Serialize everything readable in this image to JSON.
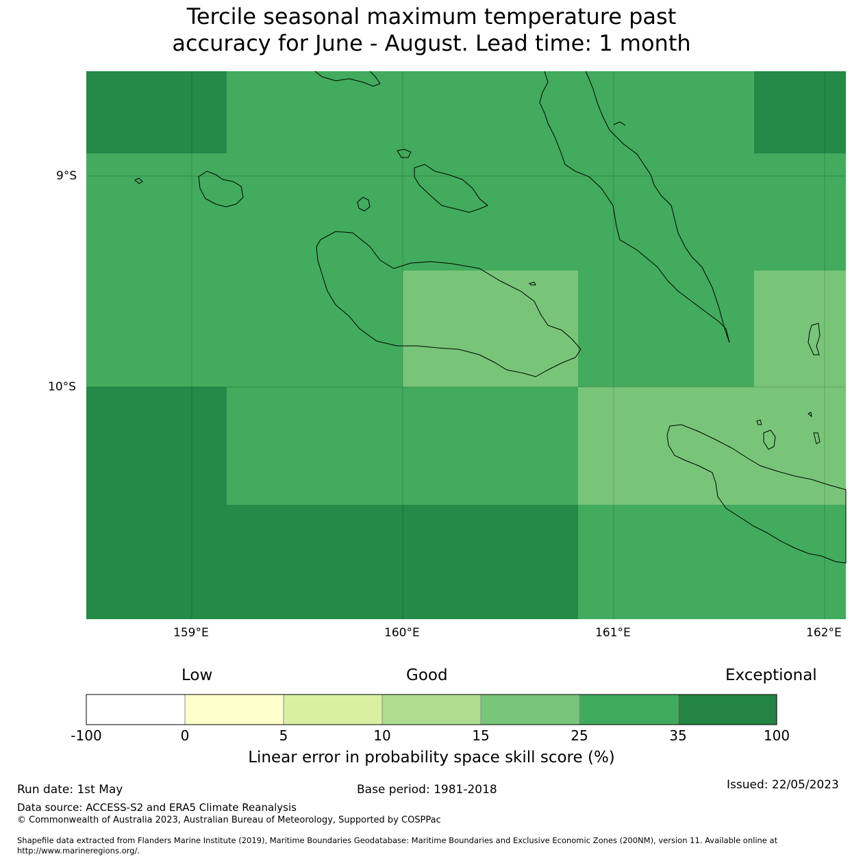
{
  "title_line1": "Tercile seasonal maximum temperature past",
  "title_line2": "accuracy for June - August. Lead time: 1 month",
  "map": {
    "lat_labels": [
      "9°S",
      "10°S"
    ],
    "lon_labels": [
      "159°E",
      "160°E",
      "161°E",
      "162°E"
    ],
    "colors": {
      "exceptional": "#248a47",
      "good_high": "#42ab5d",
      "good_mid": "#78c579"
    }
  },
  "colorbar": {
    "category_labels": [
      "Low",
      "Good",
      "Exceptional"
    ],
    "ticks": [
      "-100",
      "0",
      "5",
      "10",
      "15",
      "25",
      "35",
      "100"
    ],
    "colors": [
      "#ffffff",
      "#ffffcc",
      "#d9f0a3",
      "#addd8e",
      "#78c679",
      "#41ab5d",
      "#238443"
    ],
    "label": "Linear error in probability space skill score (%)"
  },
  "footer": {
    "run_date": "Run date: 1st May",
    "base_period": "Base period: 1981-2018",
    "issued": "Issued: 22/05/2023",
    "data_source": "Data source: ACCESS-S2 and ERA5 Climate Reanalysis",
    "copyright": "© Commonwealth of Australia 2023, Australian Bureau of Meteorology, Supported by COSPPac",
    "shapefile_line1": "Shapefile data extracted from Flanders Marine Institute (2019), Maritime Boundaries Geodatabase: Maritime Boundaries and Exclusive Economic Zones (200NM), version 11. Available online at",
    "shapefile_line2": "http://www.marineregions.org/."
  }
}
